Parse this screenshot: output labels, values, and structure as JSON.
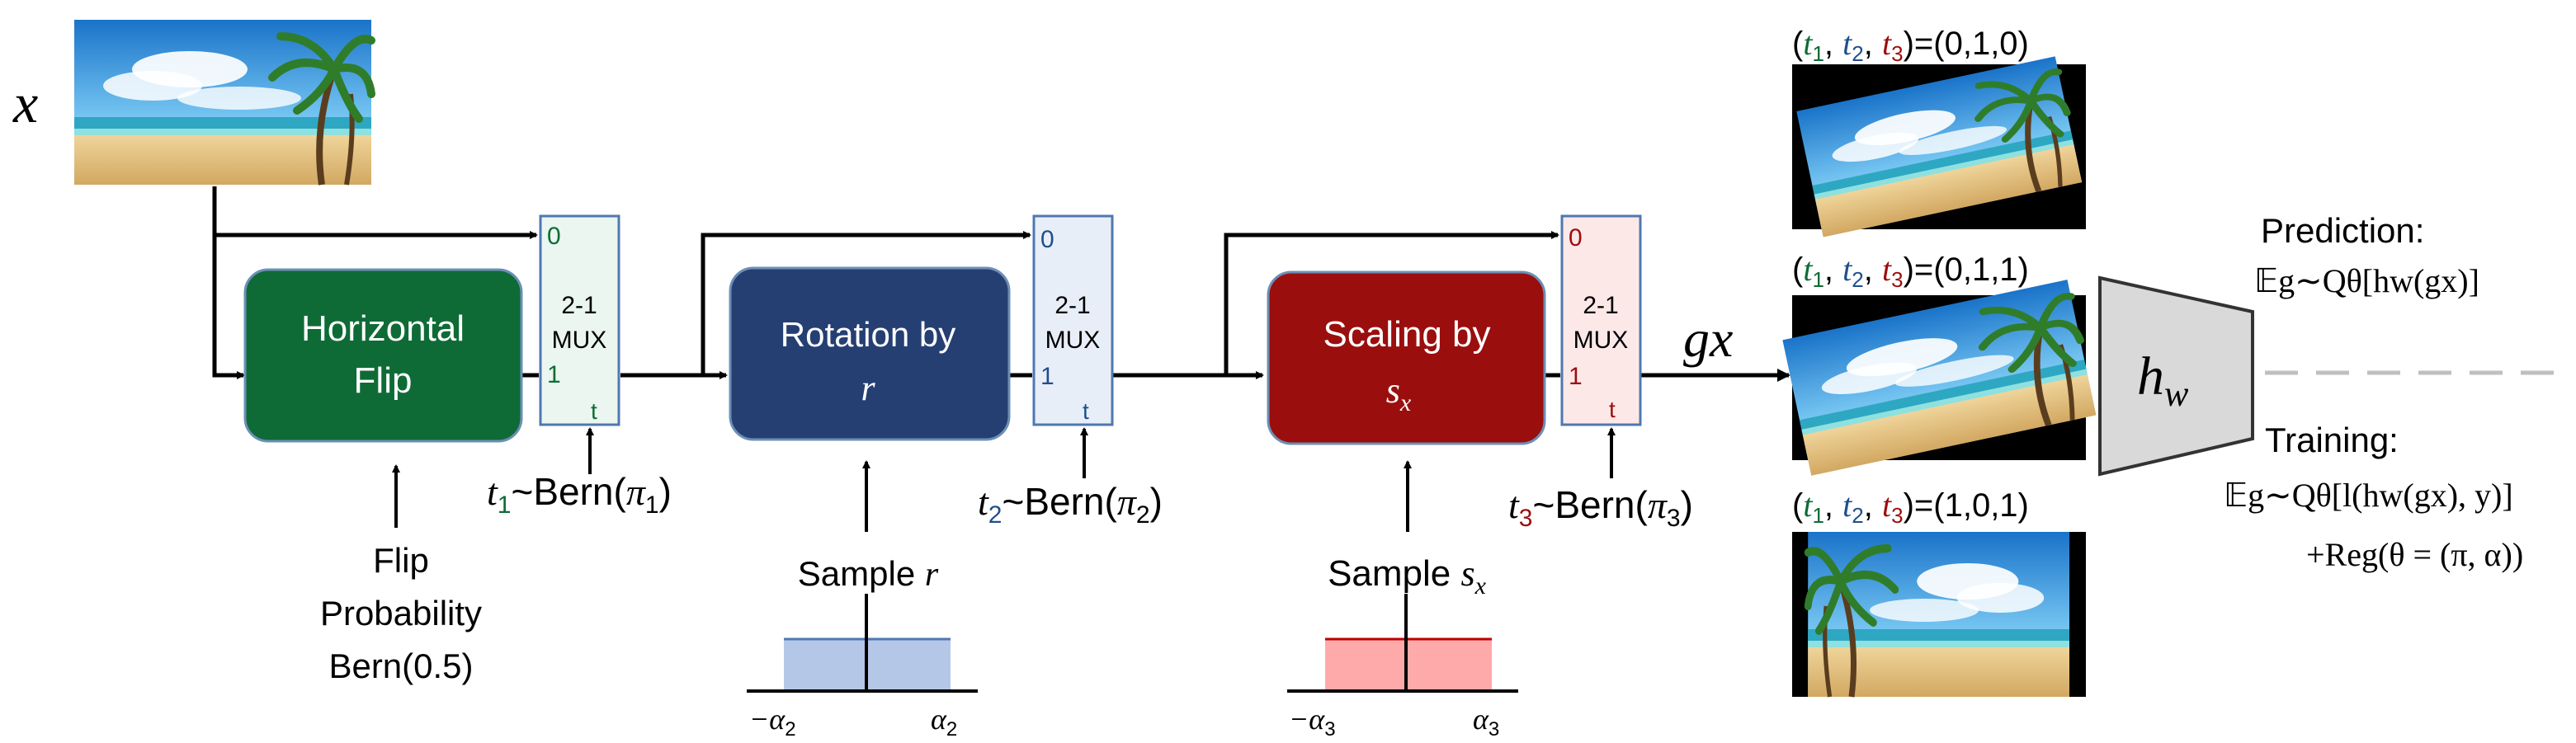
{
  "input": {
    "symbol": "x"
  },
  "blocks": {
    "flip": {
      "line1": "Horizontal",
      "line2": "Flip",
      "color": "#0e6b36"
    },
    "rotation": {
      "line1": "Rotation by",
      "var": "r",
      "color": "#253f73"
    },
    "scaling": {
      "line1": "Scaling by",
      "var": "s",
      "sub": "x",
      "color": "#9b0e0e"
    }
  },
  "muxes": [
    {
      "zero": "0",
      "title1": "2-1",
      "title2": "MUX",
      "one": "1",
      "t": "t",
      "accent": "#0e6b36",
      "fill": "#eaf6ef"
    },
    {
      "zero": "0",
      "title1": "2-1",
      "title2": "MUX",
      "one": "1",
      "t": "t",
      "accent": "#1f4e8c",
      "fill": "#e8eef8"
    },
    {
      "zero": "0",
      "title1": "2-1",
      "title2": "MUX",
      "one": "1",
      "t": "t",
      "accent": "#9b0e0e",
      "fill": "#fde8e8"
    }
  ],
  "bern": [
    {
      "t": "t",
      "sub": "1",
      "text": "~Bern(",
      "pi": "π",
      "close": ")"
    },
    {
      "t": "t",
      "sub": "2",
      "text": "~Bern(",
      "pi": "π",
      "close": ")"
    },
    {
      "t": "t",
      "sub": "3",
      "text": "~Bern(",
      "pi": "π",
      "close": ")"
    }
  ],
  "flip_prob": {
    "line1": "Flip",
    "line2": "Probability",
    "line3": "Bern(0.5)"
  },
  "sample_r": {
    "label": "Sample ",
    "var": "r",
    "left": "−α",
    "left_sub": "2",
    "right": "α",
    "right_sub": "2"
  },
  "sample_s": {
    "label": "Sample ",
    "var": "s",
    "sub": "x",
    "left": "−α",
    "left_sub": "3",
    "right": "α",
    "right_sub": "3"
  },
  "output": {
    "symbol": "gx"
  },
  "tuples": [
    {
      "t1": "t",
      "t2": "t",
      "t3": "t",
      "value": "=(0,1,0)"
    },
    {
      "t1": "t",
      "t2": "t",
      "t3": "t",
      "value": "=(0,1,1)"
    },
    {
      "t1": "t",
      "t2": "t",
      "t3": "t",
      "value": "=(1,0,1)"
    }
  ],
  "model": {
    "h": "h",
    "sub": "w"
  },
  "prediction": {
    "title": "Prediction:",
    "formula": "𝔼g∼Qθ[hw(gx)]"
  },
  "training": {
    "title": "Training:",
    "formula1": "𝔼g∼Qθ[l(hw(gx), y)]",
    "formula2": "+Reg(θ = (π, α))"
  },
  "colors": {
    "green": "#0e6b36",
    "blue": "#1f4e8c",
    "red": "#9b0e0e",
    "histBlue": "#b4c7e7",
    "histRed": "#ffaaaa"
  }
}
